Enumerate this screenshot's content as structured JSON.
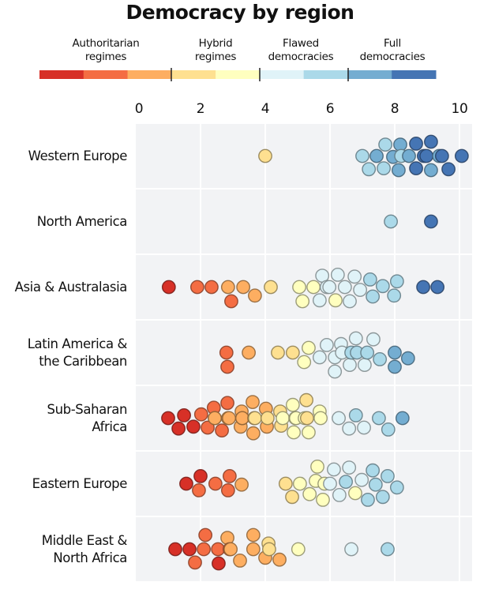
{
  "chart_data": {
    "type": "scatter",
    "subtype": "beeswarm",
    "title": "Democracy by region",
    "xlabel": "",
    "ylabel": "",
    "xlim": [
      0,
      10
    ],
    "x_ticks": [
      "0",
      "2",
      "4",
      "6",
      "8",
      "10"
    ],
    "x_tick_values": [
      0,
      2,
      4,
      6,
      8,
      10
    ],
    "grid": true,
    "legend": {
      "placement": "top",
      "categories": [
        {
          "label_line1": "Authoritarian",
          "label_line2": "regimes"
        },
        {
          "label_line1": "Hybrid",
          "label_line2": "regimes"
        },
        {
          "label_line1": "Flawed",
          "label_line2": "democracies"
        },
        {
          "label_line1": "Full",
          "label_line2": "democracies"
        }
      ],
      "color_scale": [
        "#d73027",
        "#f46d43",
        "#fdae61",
        "#fee090",
        "#ffffbf",
        "#e0f3f8",
        "#abd9e9",
        "#74add1",
        "#4575b4"
      ],
      "category_boundaries": [
        4,
        6,
        8
      ]
    },
    "color_key": {
      "r": "#d73027",
      "or": "#f46d43",
      "o": "#fdae61",
      "lo": "#fee090",
      "y": "#ffffbf",
      "pb": "#e0f3f8",
      "lb": "#abd9e9",
      "mb": "#74add1",
      "db": "#4575b4"
    },
    "regions": [
      {
        "name_line1": "Western Europe",
        "name_line2": "",
        "points": [
          [
            4.0,
            "lo"
          ],
          [
            8.12,
            "mb"
          ],
          [
            8.98,
            "db"
          ],
          [
            9.46,
            "db"
          ],
          [
            7.2,
            "lb"
          ],
          [
            7.71,
            "lb"
          ],
          [
            8.2,
            "lb"
          ],
          [
            8.66,
            "db"
          ],
          [
            9.12,
            "mb"
          ],
          [
            9.66,
            "db"
          ],
          [
            7.0,
            "lb"
          ],
          [
            7.44,
            "mb"
          ],
          [
            7.95,
            "mb"
          ],
          [
            8.44,
            "mb"
          ],
          [
            8.9,
            "db"
          ],
          [
            9.37,
            "mb"
          ],
          [
            10.07,
            "db"
          ],
          [
            7.66,
            "lb"
          ],
          [
            8.17,
            "mb"
          ],
          [
            8.66,
            "db"
          ],
          [
            9.12,
            "db"
          ]
        ]
      },
      {
        "name_line1": "North America",
        "name_line2": "",
        "points": [
          [
            7.88,
            "lb"
          ],
          [
            9.12,
            "db"
          ]
        ]
      },
      {
        "name_line1": "Asia & Australasia",
        "name_line2": "",
        "points": [
          [
            1.02,
            "r"
          ],
          [
            1.9,
            "or"
          ],
          [
            2.34,
            "or"
          ],
          [
            2.95,
            "or"
          ],
          [
            2.85,
            "o"
          ],
          [
            3.32,
            "o"
          ],
          [
            3.68,
            "o"
          ],
          [
            4.17,
            "lo"
          ],
          [
            5.05,
            "y"
          ],
          [
            5.49,
            "y"
          ],
          [
            5.15,
            "y"
          ],
          [
            6.17,
            "y"
          ],
          [
            5.76,
            "pb"
          ],
          [
            6.24,
            "pb"
          ],
          [
            6.76,
            "pb"
          ],
          [
            5.98,
            "pb"
          ],
          [
            6.46,
            "pb"
          ],
          [
            6.93,
            "pb"
          ],
          [
            5.68,
            "pb"
          ],
          [
            6.61,
            "pb"
          ],
          [
            5.9,
            "pb"
          ],
          [
            7.24,
            "lb"
          ],
          [
            7.63,
            "lb"
          ],
          [
            8.07,
            "lb"
          ],
          [
            7.32,
            "lb"
          ],
          [
            7.98,
            "lb"
          ],
          [
            8.88,
            "db"
          ],
          [
            9.32,
            "db"
          ]
        ]
      },
      {
        "name_line1": "Latin America &",
        "name_line2": "the Caribbean",
        "points": [
          [
            2.83,
            "or"
          ],
          [
            2.8,
            "or"
          ],
          [
            3.49,
            "o"
          ],
          [
            4.39,
            "lo"
          ],
          [
            4.85,
            "lo"
          ],
          [
            5.2,
            "y"
          ],
          [
            5.34,
            "y"
          ],
          [
            6.34,
            "pb"
          ],
          [
            6.8,
            "pb"
          ],
          [
            5.68,
            "pb"
          ],
          [
            6.15,
            "pb"
          ],
          [
            6.61,
            "pb"
          ],
          [
            7.07,
            "pb"
          ],
          [
            5.9,
            "pb"
          ],
          [
            6.37,
            "pb"
          ],
          [
            7.34,
            "pb"
          ],
          [
            6.15,
            "pb"
          ],
          [
            7.54,
            "lb"
          ],
          [
            6.83,
            "lb"
          ],
          [
            6.66,
            "lb"
          ],
          [
            7.15,
            "lb"
          ],
          [
            8.0,
            "mb"
          ],
          [
            8.41,
            "mb"
          ],
          [
            8.0,
            "mb"
          ]
        ]
      },
      {
        "name_line1": "Sub-Saharan",
        "name_line2": "Africa",
        "points": [
          [
            1.0,
            "r"
          ],
          [
            1.49,
            "r"
          ],
          [
            1.32,
            "r"
          ],
          [
            1.78,
            "r"
          ],
          [
            2.02,
            "or"
          ],
          [
            2.41,
            "or"
          ],
          [
            2.83,
            "or"
          ],
          [
            2.22,
            "or"
          ],
          [
            2.66,
            "or"
          ],
          [
            2.44,
            "o"
          ],
          [
            2.88,
            "o"
          ],
          [
            2.44,
            "o"
          ],
          [
            2.85,
            "o"
          ],
          [
            3.29,
            "o"
          ],
          [
            3.29,
            "o"
          ],
          [
            3.27,
            "o"
          ],
          [
            3.24,
            "o"
          ],
          [
            3.66,
            "o"
          ],
          [
            3.63,
            "o"
          ],
          [
            3.61,
            "o"
          ],
          [
            4.05,
            "o"
          ],
          [
            4.02,
            "o"
          ],
          [
            3.68,
            "lo"
          ],
          [
            4.07,
            "lo"
          ],
          [
            4.49,
            "lo"
          ],
          [
            4.46,
            "lo"
          ],
          [
            5.29,
            "lo"
          ],
          [
            5.27,
            "lo"
          ],
          [
            4.54,
            "y"
          ],
          [
            4.95,
            "y"
          ],
          [
            4.93,
            "y"
          ],
          [
            4.88,
            "y"
          ],
          [
            4.85,
            "y"
          ],
          [
            5.22,
            "y"
          ],
          [
            5.34,
            "y"
          ],
          [
            5.71,
            "y"
          ],
          [
            5.68,
            "y"
          ],
          [
            6.27,
            "pb"
          ],
          [
            6.59,
            "pb"
          ],
          [
            7.05,
            "pb"
          ],
          [
            6.8,
            "lb"
          ],
          [
            7.51,
            "lb"
          ],
          [
            7.8,
            "lb"
          ],
          [
            8.24,
            "mb"
          ]
        ]
      },
      {
        "name_line1": "Eastern Europe",
        "name_line2": "",
        "points": [
          [
            1.56,
            "r"
          ],
          [
            2.0,
            "r"
          ],
          [
            1.95,
            "or"
          ],
          [
            2.46,
            "or"
          ],
          [
            2.85,
            "or"
          ],
          [
            2.9,
            "or"
          ],
          [
            3.27,
            "o"
          ],
          [
            4.83,
            "lo"
          ],
          [
            4.63,
            "lo"
          ],
          [
            5.61,
            "y"
          ],
          [
            5.37,
            "y"
          ],
          [
            5.83,
            "y"
          ],
          [
            5.07,
            "y"
          ],
          [
            5.56,
            "y"
          ],
          [
            5.78,
            "y"
          ],
          [
            6.78,
            "y"
          ],
          [
            6.12,
            "pb"
          ],
          [
            6.59,
            "pb"
          ],
          [
            6.29,
            "pb"
          ],
          [
            6.0,
            "pb"
          ],
          [
            6.98,
            "pb"
          ],
          [
            7.17,
            "lb"
          ],
          [
            7.63,
            "lb"
          ],
          [
            7.32,
            "lb"
          ],
          [
            8.07,
            "lb"
          ],
          [
            6.49,
            "lb"
          ],
          [
            7.78,
            "lb"
          ],
          [
            7.41,
            "lb"
          ]
        ]
      },
      {
        "name_line1": "Middle East &",
        "name_line2": "North Africa",
        "points": [
          [
            1.22,
            "r"
          ],
          [
            1.66,
            "r"
          ],
          [
            2.56,
            "r"
          ],
          [
            2.1,
            "or"
          ],
          [
            2.15,
            "or"
          ],
          [
            2.54,
            "or"
          ],
          [
            1.83,
            "or"
          ],
          [
            2.9,
            "or"
          ],
          [
            2.93,
            "o"
          ],
          [
            3.22,
            "o"
          ],
          [
            2.83,
            "o"
          ],
          [
            3.63,
            "o"
          ],
          [
            3.63,
            "o"
          ],
          [
            4.0,
            "o"
          ],
          [
            4.44,
            "o"
          ],
          [
            4.12,
            "lo"
          ],
          [
            4.1,
            "lo"
          ],
          [
            5.02,
            "y"
          ],
          [
            6.66,
            "pb"
          ],
          [
            7.78,
            "lb"
          ]
        ]
      }
    ]
  }
}
